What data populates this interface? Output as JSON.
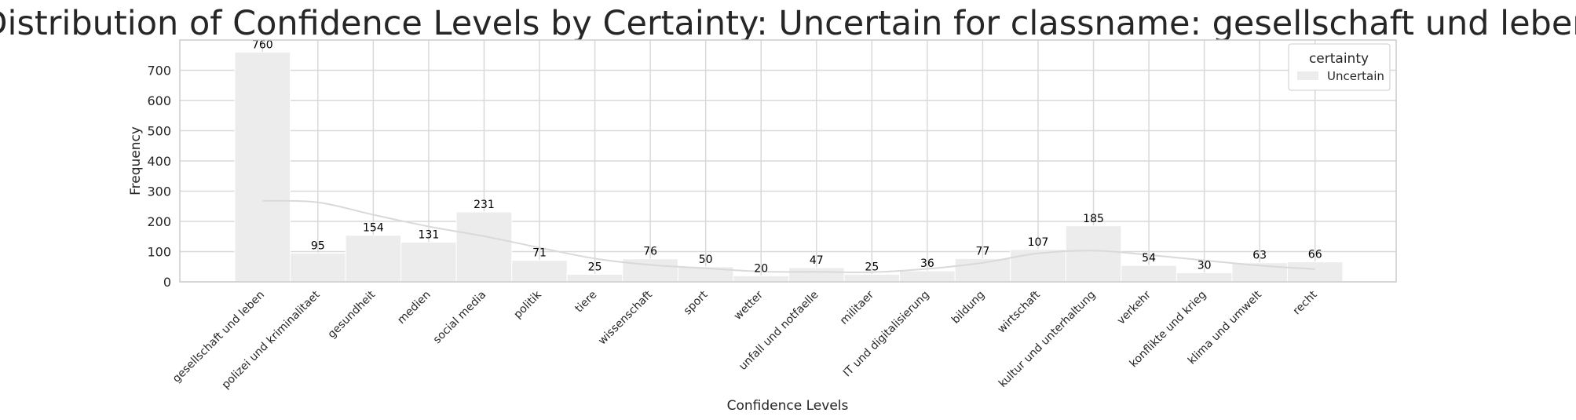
{
  "chart_data": {
    "type": "bar",
    "title": "Distribution of Confidence Levels by Certainty: Uncertain for classname: gesellschaft und leben",
    "xlabel": "Confidence Levels",
    "ylabel": "Frequency",
    "ylim": [
      0,
      800
    ],
    "yticks": [
      0,
      100,
      200,
      300,
      400,
      500,
      600,
      700
    ],
    "grid": true,
    "legend_position": "top-right",
    "legend": {
      "title": "certainty",
      "entries": [
        "Uncertain"
      ]
    },
    "categories": [
      "gesellschaft und leben",
      "polizei und kriminalitaet",
      "gesundheit",
      "medien",
      "social media",
      "politik",
      "tiere",
      "wissenschaft",
      "sport",
      "wetter",
      "unfall und notfaelle",
      "militaer",
      "IT und digitalisierung",
      "bildung",
      "wirtschaft",
      "kultur und unterhaltung",
      "verkehr",
      "konflikte und krieg",
      "klima und umwelt",
      "recht"
    ],
    "series": [
      {
        "name": "Uncertain",
        "values": [
          760,
          95,
          154,
          131,
          231,
          71,
          25,
          76,
          50,
          20,
          47,
          25,
          36,
          77,
          107,
          185,
          54,
          30,
          63,
          66
        ],
        "color": "#ececec"
      }
    ],
    "kde": {
      "values": [
        268,
        263,
        222,
        183,
        151,
        113,
        77,
        56,
        45,
        34,
        33,
        32,
        43,
        63,
        94,
        103,
        89,
        71,
        54,
        42
      ],
      "color": "#d9d9d9"
    },
    "colors": {
      "grid": "#d9d9d9",
      "axes_edge": "#cccccc",
      "bar_edge": "#ffffff"
    }
  }
}
